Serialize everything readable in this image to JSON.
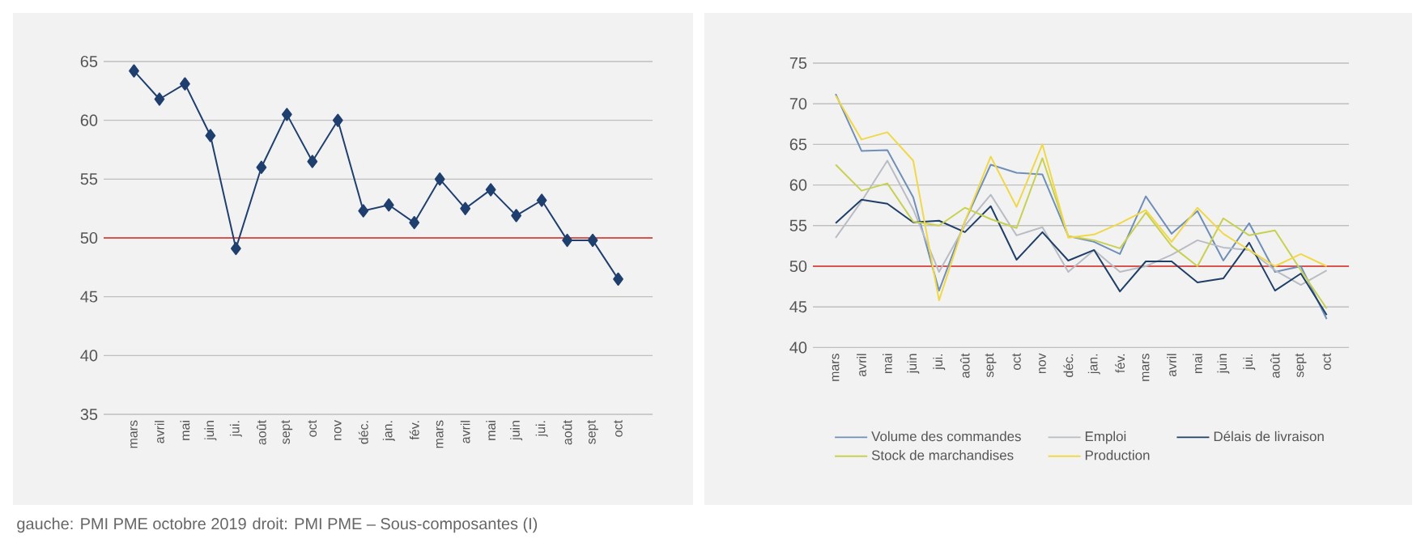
{
  "chart_data": [
    {
      "type": "line",
      "categories": [
        "mars",
        "avril",
        "mai",
        "juin",
        "jui.",
        "août",
        "sept",
        "oct",
        "nov",
        "déc.",
        "jan.",
        "fév.",
        "mars",
        "avril",
        "mai",
        "juin",
        "jui.",
        "août",
        "sept",
        "oct"
      ],
      "values": [
        64.2,
        61.8,
        63.1,
        58.7,
        49.1,
        56.0,
        60.5,
        56.5,
        60.0,
        52.3,
        52.8,
        51.3,
        55.0,
        52.5,
        54.1,
        51.9,
        53.2,
        49.8,
        49.8,
        46.5
      ],
      "color": "#1f3f6e",
      "marker": "diamond",
      "grid": "y",
      "ylim": [
        35,
        65
      ],
      "yticks": [
        35,
        40,
        45,
        50,
        55,
        60,
        65
      ],
      "ref_lines": [
        {
          "axis": "y",
          "value": 50,
          "color": "#d9534f"
        }
      ],
      "annotations": [
        "gauche: PMI PME octobre 2019"
      ]
    },
    {
      "type": "line",
      "categories": [
        "mars",
        "avril",
        "mai",
        "juin",
        "jui.",
        "août",
        "sept",
        "oct",
        "nov",
        "déc.",
        "jan.",
        "fév.",
        "mars",
        "avril",
        "mai",
        "juin",
        "jui.",
        "août",
        "sept",
        "oct"
      ],
      "series": [
        {
          "name": "Volume des commandes",
          "color": "#6f8fb8",
          "values": [
            71.2,
            64.2,
            64.3,
            58.5,
            47.0,
            55.5,
            62.5,
            61.5,
            61.3,
            53.7,
            53.0,
            51.5,
            58.6,
            54.0,
            56.8,
            50.7,
            55.3,
            49.3,
            50.0,
            43.5
          ]
        },
        {
          "name": "Emploi",
          "color": "#b8bcc4",
          "values": [
            53.5,
            58.0,
            63.0,
            57.0,
            49.3,
            55.0,
            58.8,
            53.8,
            54.8,
            49.3,
            52.0,
            49.3,
            50.0,
            51.4,
            53.2,
            52.3,
            52.0,
            49.5,
            47.7,
            49.5
          ]
        },
        {
          "name": "Délais de livraison",
          "color": "#1f3f66",
          "values": [
            55.3,
            58.2,
            57.7,
            55.4,
            55.6,
            54.2,
            57.4,
            50.8,
            54.2,
            50.7,
            52.0,
            46.9,
            50.6,
            50.6,
            48.0,
            48.5,
            52.9,
            47.0,
            49.1,
            44.0
          ]
        },
        {
          "name": "Stock de marchandises",
          "color": "#c8d050",
          "values": [
            62.5,
            59.3,
            60.2,
            55.5,
            55.0,
            57.2,
            55.8,
            54.7,
            63.3,
            53.7,
            53.2,
            52.2,
            56.6,
            52.5,
            50.0,
            55.9,
            53.8,
            54.4,
            49.5,
            44.8
          ]
        },
        {
          "name": "Production",
          "color": "#f0d848",
          "values": [
            71.0,
            65.6,
            66.5,
            63.0,
            45.8,
            55.5,
            63.5,
            57.3,
            65.0,
            53.5,
            53.9,
            55.3,
            56.9,
            53.0,
            57.2,
            54.0,
            52.0,
            50.0,
            51.5,
            50.0
          ]
        }
      ],
      "grid": "y",
      "legend": "bottom",
      "ylim": [
        40,
        75
      ],
      "yticks": [
        40,
        45,
        50,
        55,
        60,
        65,
        70,
        75
      ],
      "ref_lines": [
        {
          "axis": "y",
          "value": 50,
          "color": "#d9534f"
        }
      ],
      "annotations": [
        "droit: PMI PME – Sous-composantes (I)"
      ]
    }
  ]
}
